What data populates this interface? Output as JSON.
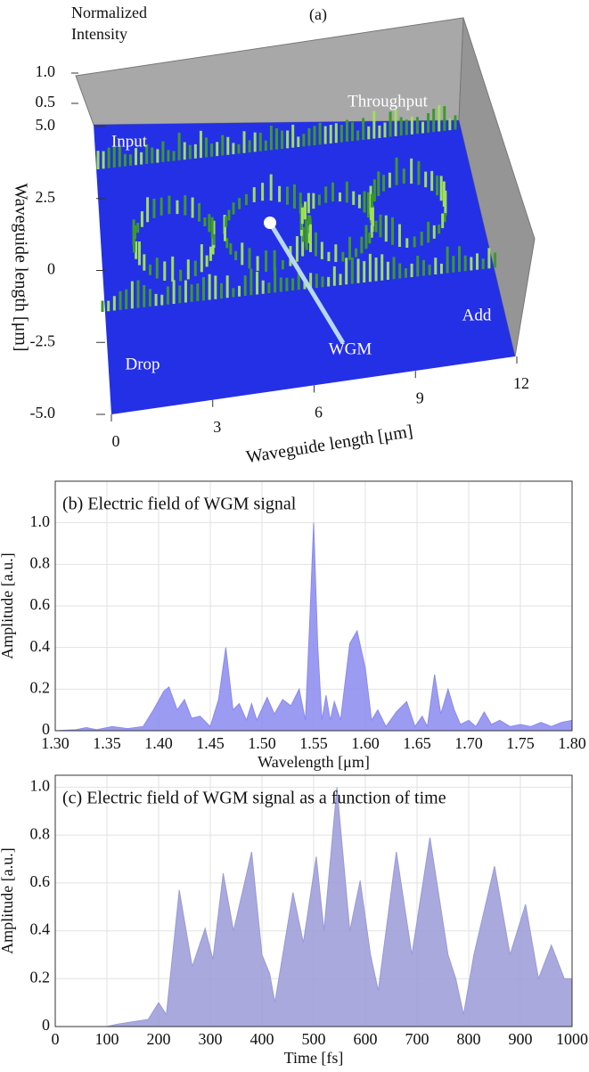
{
  "chart_data": [
    {
      "type": "surface3d",
      "title": "(a)",
      "zlabel": "Normalized Intensity",
      "xlabel": "Waveguide length [μm]",
      "ylabel": "Waveguide length [μm]",
      "xlim": [
        0,
        12
      ],
      "xticks": [
        0,
        3,
        6,
        9,
        12
      ],
      "ylim": [
        -5,
        5
      ],
      "yticks": [
        {
          "value": 5,
          "label": "5.0"
        },
        2.5,
        0,
        -2.5,
        {
          "value": -5,
          "label": "-5.0"
        }
      ],
      "zlim": [
        0,
        1
      ],
      "zticks": [
        {
          "value": 1,
          "label": "1.0"
        },
        0.5
      ],
      "annotations": [
        "Input",
        "Throughput",
        "Drop",
        "Add",
        "WGM"
      ]
    },
    {
      "type": "area",
      "title": "(b) Electric field of WGM signal",
      "xlabel": "Wavelength [μm]",
      "ylabel": "Amplitude [a.u.]",
      "color": "#8a8af0",
      "grid": true,
      "xlim": [
        1.3,
        1.8
      ],
      "xticks": [
        {
          "value": 1.3,
          "label": "1.30"
        },
        1.35,
        {
          "value": 1.4,
          "label": "1.40"
        },
        1.45,
        {
          "value": 1.5,
          "label": "1.50"
        },
        1.55,
        {
          "value": 1.6,
          "label": "1.60"
        },
        1.65,
        {
          "value": 1.7,
          "label": "1.70"
        },
        1.75,
        {
          "value": 1.8,
          "label": "1.80"
        }
      ],
      "ylim": [
        0,
        1.2
      ],
      "yticks": [
        0,
        0.2,
        0.4,
        0.6,
        0.8,
        {
          "value": 1,
          "label": "1.0"
        }
      ],
      "x": [
        1.3,
        1.32,
        1.33,
        1.34,
        1.355,
        1.37,
        1.385,
        1.395,
        1.405,
        1.41,
        1.418,
        1.425,
        1.432,
        1.44,
        1.45,
        1.458,
        1.465,
        1.472,
        1.478,
        1.485,
        1.49,
        1.495,
        1.505,
        1.512,
        1.52,
        1.528,
        1.536,
        1.542,
        1.546,
        1.55,
        1.554,
        1.558,
        1.562,
        1.566,
        1.57,
        1.576,
        1.585,
        1.592,
        1.6,
        1.606,
        1.612,
        1.62,
        1.63,
        1.64,
        1.648,
        1.655,
        1.66,
        1.667,
        1.673,
        1.68,
        1.686,
        1.692,
        1.7,
        1.707,
        1.715,
        1.722,
        1.73,
        1.74,
        1.75,
        1.76,
        1.77,
        1.78,
        1.79,
        1.8
      ],
      "values": [
        0,
        0.005,
        0.015,
        0.005,
        0.02,
        0.01,
        0.02,
        0.1,
        0.19,
        0.21,
        0.1,
        0.15,
        0.06,
        0.07,
        0.02,
        0.15,
        0.4,
        0.1,
        0.13,
        0.05,
        0.13,
        0.05,
        0.16,
        0.08,
        0.15,
        0.12,
        0.2,
        0.05,
        0.5,
        1.0,
        0.4,
        0.05,
        0.17,
        0.05,
        0.14,
        0.05,
        0.42,
        0.48,
        0.3,
        0.05,
        0.1,
        0.02,
        0.09,
        0.14,
        0.02,
        0.07,
        0.02,
        0.27,
        0.08,
        0.2,
        0.1,
        0.03,
        0.05,
        0.02,
        0.09,
        0.03,
        0.05,
        0.02,
        0.03,
        0.02,
        0.04,
        0.02,
        0.04,
        0.05
      ]
    },
    {
      "type": "area",
      "title": "(c) Electric field of WGM signal as a function of time",
      "xlabel": "Time [fs]",
      "ylabel": "Amplitude [a.u.]",
      "color": "#9a9ad8",
      "grid": true,
      "xlim": [
        0,
        1000
      ],
      "xticks": [
        0,
        100,
        200,
        300,
        400,
        500,
        600,
        700,
        800,
        900,
        1000
      ],
      "ylim": [
        0,
        1.05
      ],
      "yticks": [
        0,
        0.2,
        0.4,
        0.6,
        0.8,
        {
          "value": 1,
          "label": "1.0"
        }
      ],
      "x": [
        0,
        100,
        120,
        150,
        180,
        200,
        215,
        240,
        265,
        290,
        305,
        325,
        345,
        380,
        400,
        415,
        425,
        460,
        480,
        505,
        520,
        545,
        570,
        590,
        610,
        625,
        660,
        690,
        725,
        760,
        775,
        790,
        810,
        850,
        880,
        910,
        935,
        960,
        985,
        1000
      ],
      "values": [
        0,
        0,
        0.01,
        0.02,
        0.03,
        0.1,
        0.05,
        0.57,
        0.25,
        0.41,
        0.28,
        0.64,
        0.4,
        0.73,
        0.3,
        0.22,
        0.1,
        0.56,
        0.35,
        0.71,
        0.4,
        1.0,
        0.4,
        0.61,
        0.3,
        0.15,
        0.73,
        0.3,
        0.79,
        0.3,
        0.2,
        0.05,
        0.3,
        0.67,
        0.3,
        0.51,
        0.2,
        0.34,
        0.2,
        0.2
      ]
    }
  ]
}
